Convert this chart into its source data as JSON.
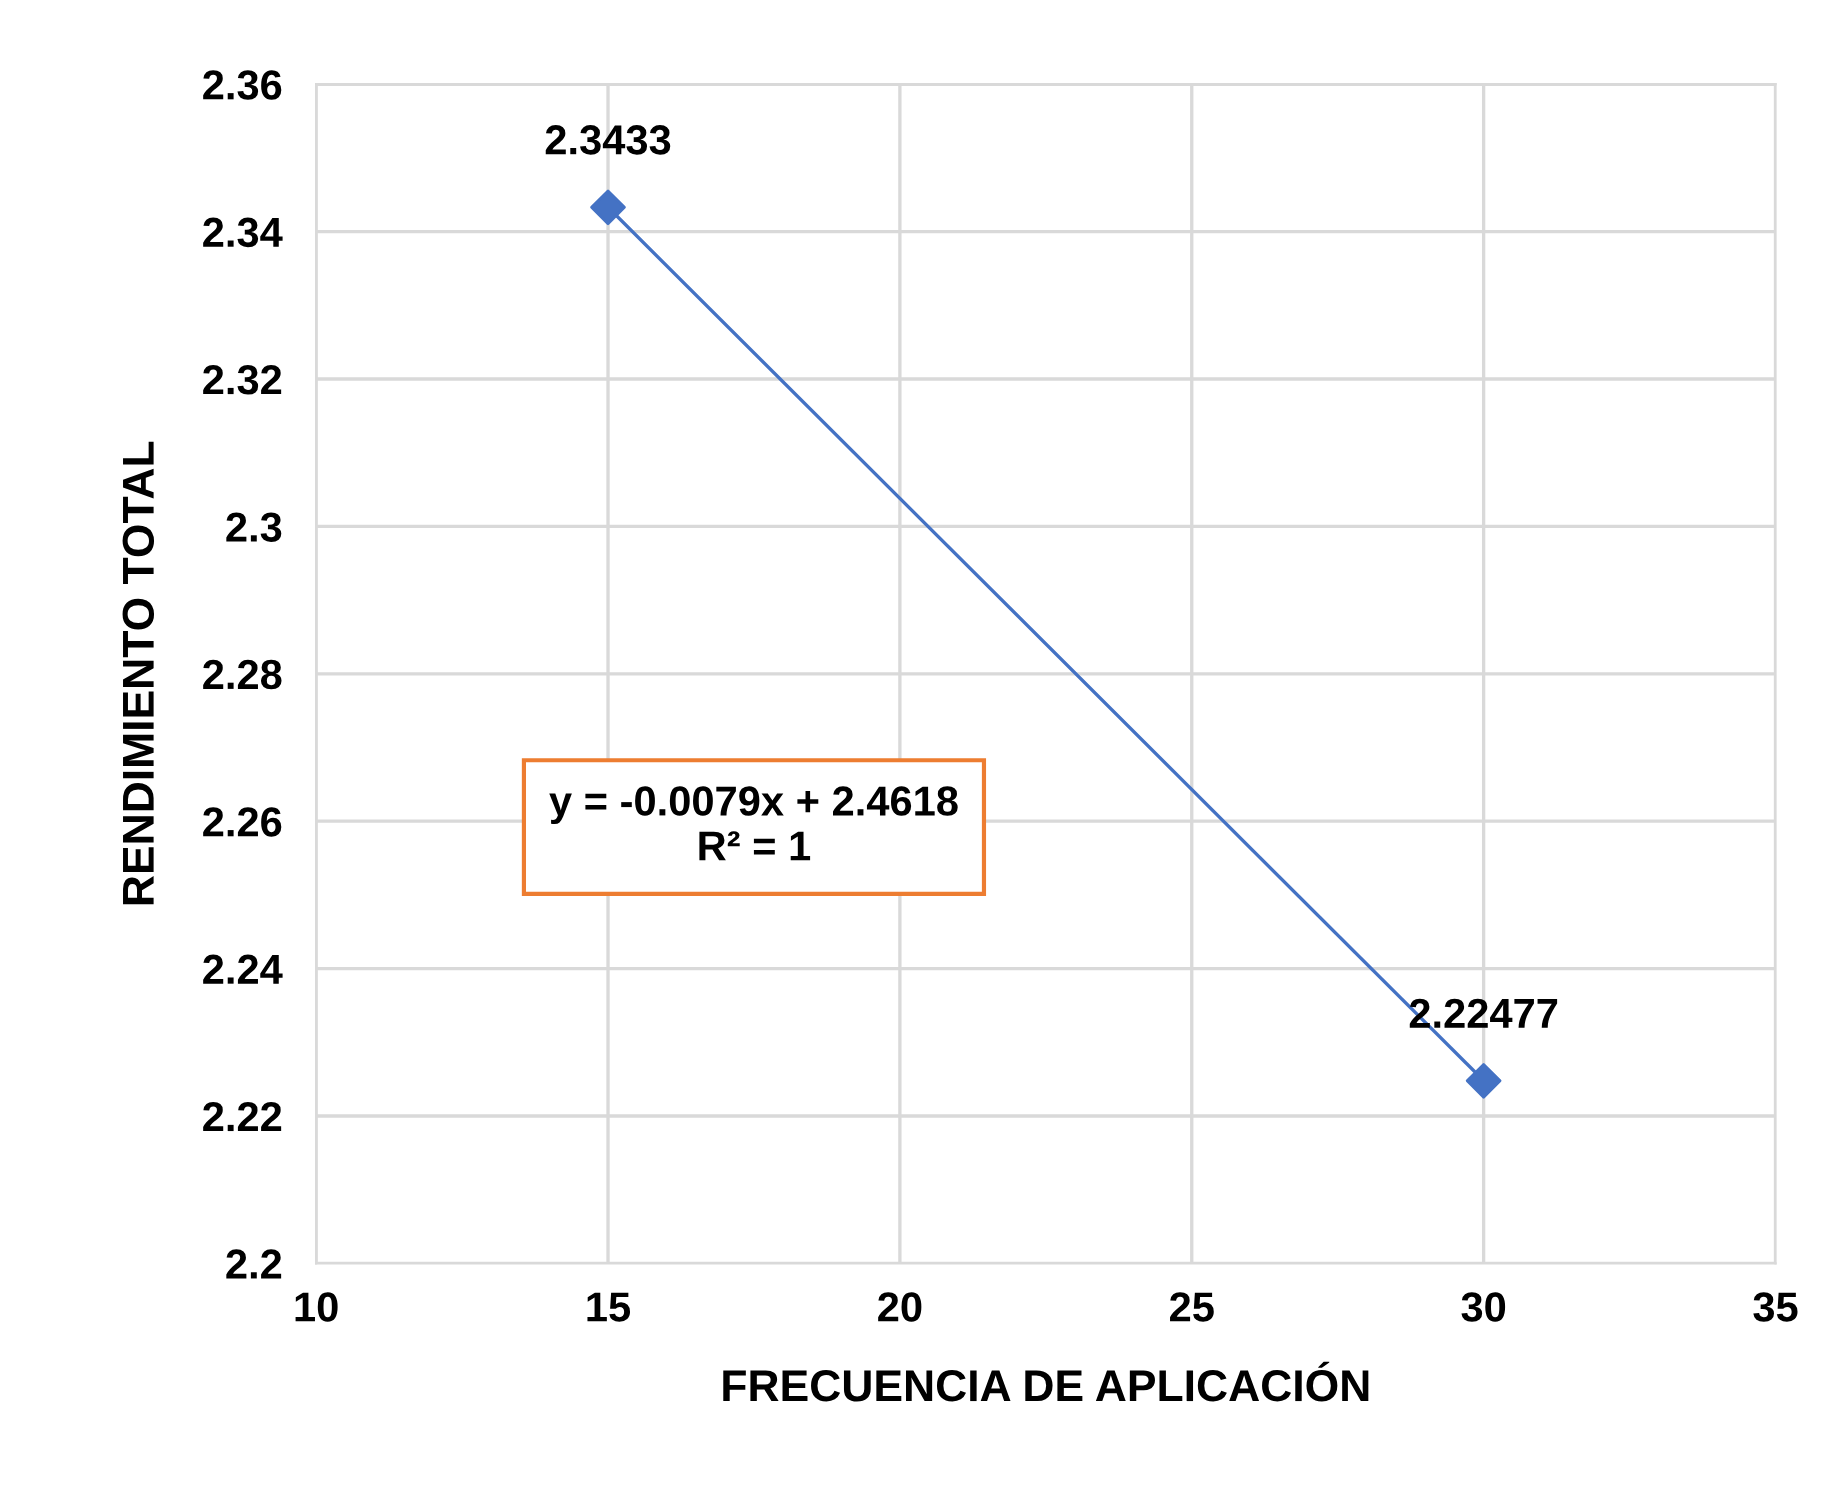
{
  "chart_data": {
    "type": "scatter",
    "xlabel": "FRECUENCIA DE APLICACIÓN",
    "ylabel": "RENDIMIENTO TOTAL",
    "x": [
      15,
      30
    ],
    "series": [
      {
        "color": "#4472c4",
        "values": [
          2.3433,
          2.22477
        ],
        "value_labels": [
          "2.3433",
          "2.22477"
        ],
        "marker": "diamond"
      },
      {
        "type": "line",
        "color": "#4472c4",
        "values": [
          2.3433,
          2.2248
        ],
        "marker": "none",
        "line_style": "solid"
      }
    ],
    "annotations": [
      "y = -0.0079x + 2.4618\nR² = 1"
    ],
    "xlim": [
      10,
      35
    ],
    "xticks": [
      10,
      15,
      20,
      25,
      30,
      35
    ],
    "ylim": [
      2.2,
      2.36
    ],
    "yticks": [
      2.2,
      2.22,
      2.24,
      2.26,
      2.28,
      2.3,
      2.32,
      2.34,
      2.36
    ],
    "grid": true,
    "legend": false
  }
}
